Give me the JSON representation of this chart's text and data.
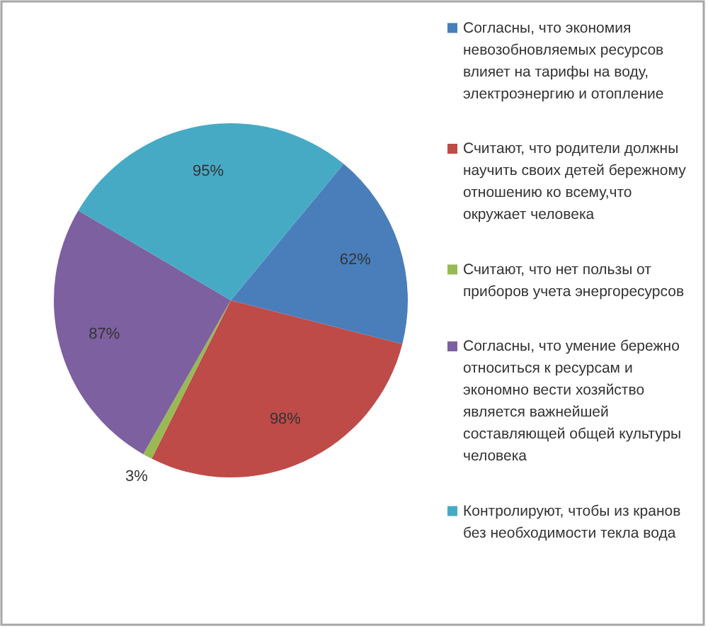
{
  "chart_data": {
    "type": "pie",
    "categories": [
      "Согласны, что экономия невозобновляемых ресурсов влияет на тарифы на воду, электроэнергию и отопление",
      "Считают, что родители должны научить своих детей бережному отношению ко всему,что окружает человека",
      "Считают, что нет пользы от приборов учета энергоресурсов",
      "Согласны, что умение бережно относиться к ресурсам и экономно вести хозяйство является важнейшей составляющей общей культуры человека",
      "Контролируют, чтобы из кранов без необходимости текла вода"
    ],
    "values": [
      62,
      98,
      3,
      87,
      95
    ],
    "value_labels": [
      "62%",
      "98%",
      "3%",
      "87%",
      "95%"
    ],
    "colors": [
      "#4a7ebb",
      "#be4b48",
      "#98b954",
      "#7d60a0",
      "#46aac5"
    ],
    "legend": "right"
  }
}
